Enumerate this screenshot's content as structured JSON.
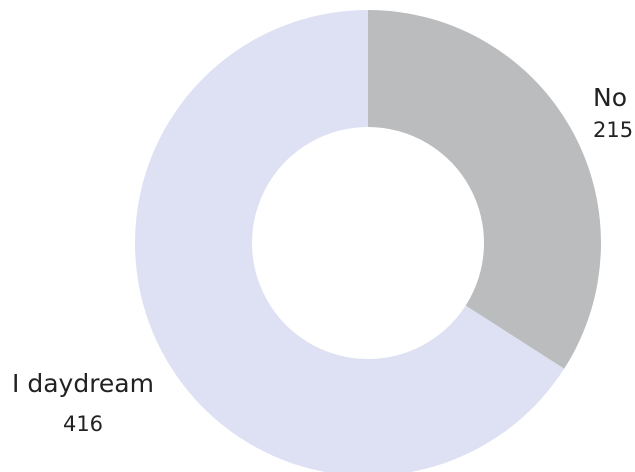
{
  "chart_data": {
    "type": "pie",
    "variant": "donut",
    "title": "",
    "slices": [
      {
        "label": "No",
        "value": 215,
        "color": "#bbbcbe"
      },
      {
        "label": "I daydream",
        "value": 416,
        "color": "#dde1f3"
      }
    ],
    "legend": "none",
    "label_placement": "outside"
  }
}
